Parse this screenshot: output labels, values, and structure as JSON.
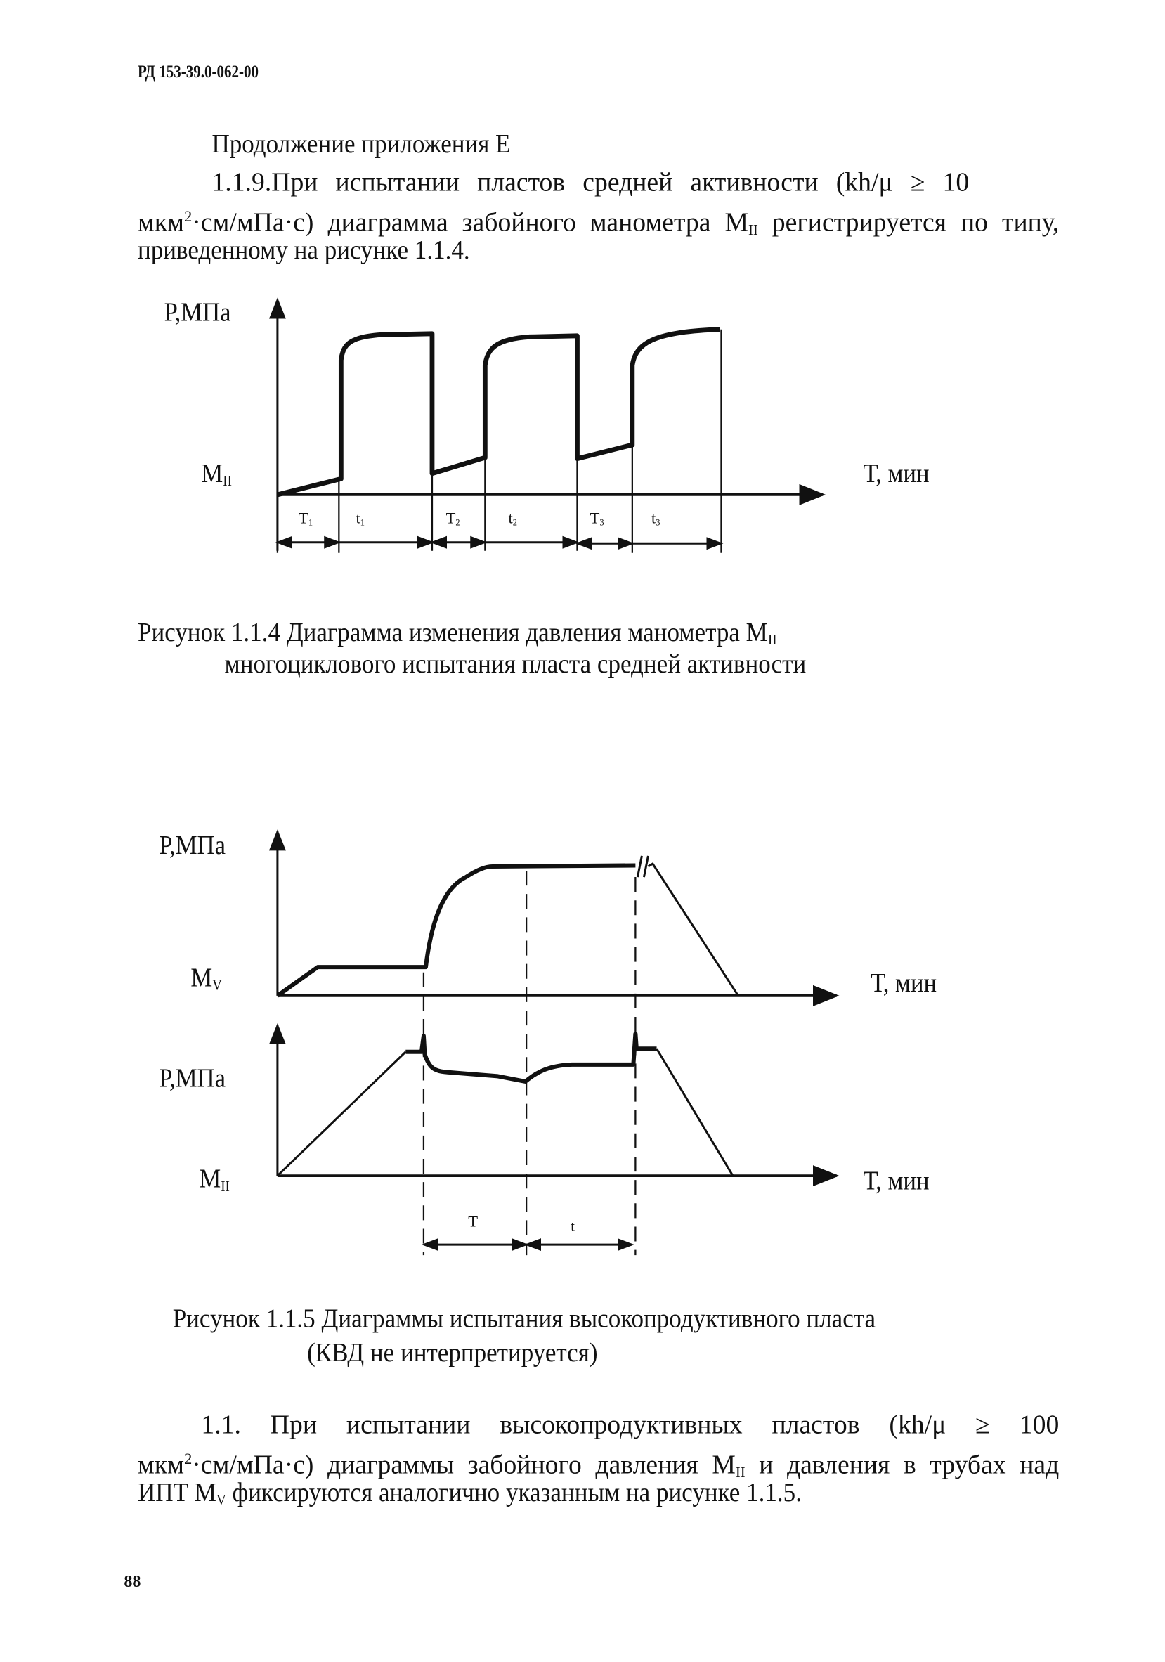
{
  "header": {
    "doc_code": "РД 153-39.0-062-00"
  },
  "section_title": "Продолжение приложения Е",
  "para1": {
    "l1": "1.1.9.При испытании пластов средней активности (kh/μ ≥ 10",
    "l2a": "мкм",
    "l2sup": "2",
    "l2b": "·см/мПа·с) диаграмма забойного манометра М",
    "l2sub": "II",
    "l2c": " регистрируется по типу,",
    "l3": "приведенному на рисунке 1.1.4."
  },
  "fig1": {
    "ylabel": "Р,МПа",
    "gauge_main": "М",
    "gauge_sub": "II",
    "xlabel": "Т, мин",
    "intervals": [
      {
        "main": "T",
        "sub": "1"
      },
      {
        "main": "t",
        "sub": "1"
      },
      {
        "main": "T",
        "sub": "2"
      },
      {
        "main": "t",
        "sub": "2"
      },
      {
        "main": "T",
        "sub": "3"
      },
      {
        "main": "t",
        "sub": "3"
      }
    ],
    "caption_l1a": "Рисунок 1.1.4 Диаграмма изменения давления манометра М",
    "caption_l1sub": "II",
    "caption_l2": "многоциклового испытания пласта средней активности"
  },
  "fig2": {
    "top": {
      "ylabel": "Р,МПа",
      "gauge_main": "М",
      "gauge_sub": "V",
      "xlabel": "Т, мин"
    },
    "bottom": {
      "ylabel": "Р,МПа",
      "gauge_main": "М",
      "gauge_sub": "II",
      "xlabel": "Т, мин"
    },
    "interval_T": "T",
    "interval_t": "t",
    "caption_l1": "Рисунок 1.1.5 Диаграммы испытания высокопродуктивного пласта",
    "caption_l2": "(КВД не интерпретируется)"
  },
  "para2": {
    "l1": "1.1. При испытании высокопродуктивных пластов (kh/μ ≥ 100",
    "l2a": "мкм",
    "l2sup": "2",
    "l2b": "·см/мПа·с) диаграммы забойного давления М",
    "l2sub": "II",
    "l2c": " и давления в трубах над",
    "l3a": "ИПТ М",
    "l3sub": "V",
    "l3b": " фиксируются аналогично указанным на рисунке 1.1.5."
  },
  "page_number": "88"
}
